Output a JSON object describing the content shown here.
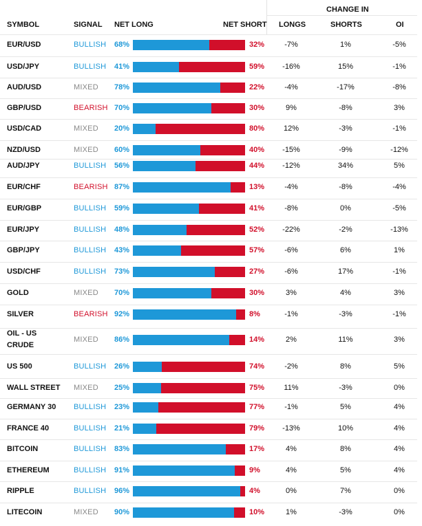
{
  "headers": {
    "symbol": "SYMBOL",
    "signal": "SIGNAL",
    "net_long": "NET LONG",
    "net_short": "NET SHORT",
    "change_in": "CHANGE IN",
    "longs": "LONGS",
    "shorts": "SHORTS",
    "oi": "OI"
  },
  "colors": {
    "bullish": "#1e98d8",
    "bearish": "#d10f2a",
    "mixed": "#888888"
  },
  "rows": [
    {
      "symbol": "EUR/USD",
      "signal": "BULLISH",
      "net_long": 68,
      "pct_long": "68%",
      "pct_short": "32%",
      "longs": "-7%",
      "shorts": "1%",
      "oi": "-5%"
    },
    {
      "symbol": "USD/JPY",
      "signal": "BULLISH",
      "net_long": 41,
      "pct_long": "41%",
      "pct_short": "59%",
      "longs": "-16%",
      "shorts": "15%",
      "oi": "-1%"
    },
    {
      "symbol": "AUD/USD",
      "signal": "MIXED",
      "net_long": 78,
      "pct_long": "78%",
      "pct_short": "22%",
      "longs": "-4%",
      "shorts": "-17%",
      "oi": "-8%"
    },
    {
      "symbol": "GBP/USD",
      "signal": "BEARISH",
      "net_long": 70,
      "pct_long": "70%",
      "pct_short": "30%",
      "longs": "9%",
      "shorts": "-8%",
      "oi": "3%"
    },
    {
      "symbol": "USD/CAD",
      "signal": "MIXED",
      "net_long": 20,
      "pct_long": "20%",
      "pct_short": "80%",
      "longs": "12%",
      "shorts": "-3%",
      "oi": "-1%"
    },
    {
      "symbol": "NZD/USD",
      "signal": "MIXED",
      "net_long": 60,
      "pct_long": "60%",
      "pct_short": "40%",
      "longs": "-15%",
      "shorts": "-9%",
      "oi": "-12%"
    },
    {
      "symbol": "AUD/JPY",
      "signal": "BULLISH",
      "net_long": 56,
      "pct_long": "56%",
      "pct_short": "44%",
      "longs": "-12%",
      "shorts": "34%",
      "oi": "5%"
    },
    {
      "symbol": "EUR/CHF",
      "signal": "BEARISH",
      "net_long": 87,
      "pct_long": "87%",
      "pct_short": "13%",
      "longs": "-4%",
      "shorts": "-8%",
      "oi": "-4%"
    },
    {
      "symbol": "EUR/GBP",
      "signal": "BULLISH",
      "net_long": 59,
      "pct_long": "59%",
      "pct_short": "41%",
      "longs": "-8%",
      "shorts": "0%",
      "oi": "-5%"
    },
    {
      "symbol": "EUR/JPY",
      "signal": "BULLISH",
      "net_long": 48,
      "pct_long": "48%",
      "pct_short": "52%",
      "longs": "-22%",
      "shorts": "-2%",
      "oi": "-13%"
    },
    {
      "symbol": "GBP/JPY",
      "signal": "BULLISH",
      "net_long": 43,
      "pct_long": "43%",
      "pct_short": "57%",
      "longs": "-6%",
      "shorts": "6%",
      "oi": "1%"
    },
    {
      "symbol": "USD/CHF",
      "signal": "BULLISH",
      "net_long": 73,
      "pct_long": "73%",
      "pct_short": "27%",
      "longs": "-6%",
      "shorts": "17%",
      "oi": "-1%"
    },
    {
      "symbol": "GOLD",
      "signal": "MIXED",
      "net_long": 70,
      "pct_long": "70%",
      "pct_short": "30%",
      "longs": "3%",
      "shorts": "4%",
      "oi": "3%"
    },
    {
      "symbol": "SILVER",
      "signal": "BEARISH",
      "net_long": 92,
      "pct_long": "92%",
      "pct_short": "8%",
      "longs": "-1%",
      "shorts": "-3%",
      "oi": "-1%"
    },
    {
      "symbol": "OIL - US CRUDE",
      "signal": "MIXED",
      "net_long": 86,
      "pct_long": "86%",
      "pct_short": "14%",
      "longs": "2%",
      "shorts": "11%",
      "oi": "3%"
    },
    {
      "symbol": "US 500",
      "signal": "BULLISH",
      "net_long": 26,
      "pct_long": "26%",
      "pct_short": "74%",
      "longs": "-2%",
      "shorts": "8%",
      "oi": "5%"
    },
    {
      "symbol": "WALL STREET",
      "signal": "MIXED",
      "net_long": 25,
      "pct_long": "25%",
      "pct_short": "75%",
      "longs": "11%",
      "shorts": "-3%",
      "oi": "0%"
    },
    {
      "symbol": "GERMANY 30",
      "signal": "BULLISH",
      "net_long": 23,
      "pct_long": "23%",
      "pct_short": "77%",
      "longs": "-1%",
      "shorts": "5%",
      "oi": "4%"
    },
    {
      "symbol": "FRANCE 40",
      "signal": "BULLISH",
      "net_long": 21,
      "pct_long": "21%",
      "pct_short": "79%",
      "longs": "-13%",
      "shorts": "10%",
      "oi": "4%"
    },
    {
      "symbol": "BITCOIN",
      "signal": "BULLISH",
      "net_long": 83,
      "pct_long": "83%",
      "pct_short": "17%",
      "longs": "4%",
      "shorts": "8%",
      "oi": "4%"
    },
    {
      "symbol": "ETHEREUM",
      "signal": "BULLISH",
      "net_long": 91,
      "pct_long": "91%",
      "pct_short": "9%",
      "longs": "4%",
      "shorts": "5%",
      "oi": "4%"
    },
    {
      "symbol": "RIPPLE",
      "signal": "BULLISH",
      "net_long": 96,
      "pct_long": "96%",
      "pct_short": "4%",
      "longs": "0%",
      "shorts": "7%",
      "oi": "0%"
    },
    {
      "symbol": "LITECOIN",
      "signal": "MIXED",
      "net_long": 90,
      "pct_long": "90%",
      "pct_short": "10%",
      "longs": "1%",
      "shorts": "-3%",
      "oi": "0%"
    }
  ]
}
